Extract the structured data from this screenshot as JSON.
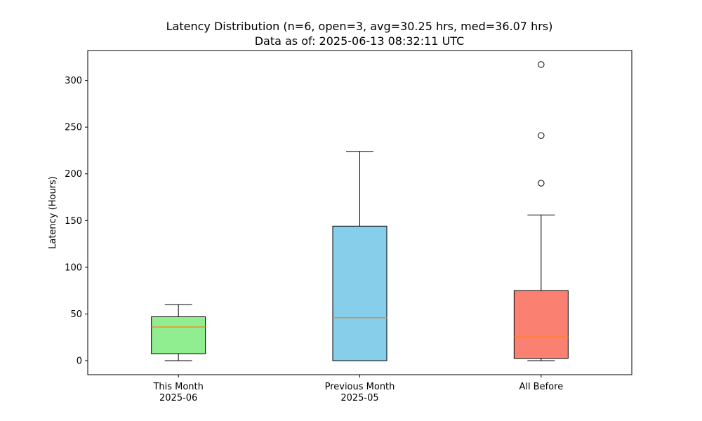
{
  "chart_data": {
    "type": "box",
    "title": "Latency Distribution (n=6, open=3, avg=30.25 hrs, med=36.07 hrs)",
    "subtitle": "Data as of: 2025-06-13 08:32:11 UTC",
    "xlabel": "",
    "ylabel": "Latency (Hours)",
    "ylim": [
      -15,
      332
    ],
    "yticks": [
      0,
      50,
      100,
      150,
      200,
      250,
      300
    ],
    "grid": false,
    "categories": [
      {
        "line1": "This Month",
        "line2": "2025-06"
      },
      {
        "line1": "Previous Month",
        "line2": "2025-05"
      },
      {
        "line1": "All Before",
        "line2": ""
      }
    ],
    "boxes": [
      {
        "whisker_low": 0,
        "q1": 7.5,
        "median": 36.07,
        "q3": 47,
        "whisker_high": 60,
        "outliers": [],
        "color": "#90EE90"
      },
      {
        "whisker_low": 0,
        "q1": 0,
        "median": 46,
        "q3": 144,
        "whisker_high": 224,
        "outliers": [],
        "color": "#87CEEB"
      },
      {
        "whisker_low": 0,
        "q1": 2.5,
        "median": 25.5,
        "q3": 75,
        "whisker_high": 156,
        "outliers": [
          190,
          241,
          317
        ],
        "color": "#FA8072"
      }
    ],
    "median_color": "#FF7F0E"
  }
}
